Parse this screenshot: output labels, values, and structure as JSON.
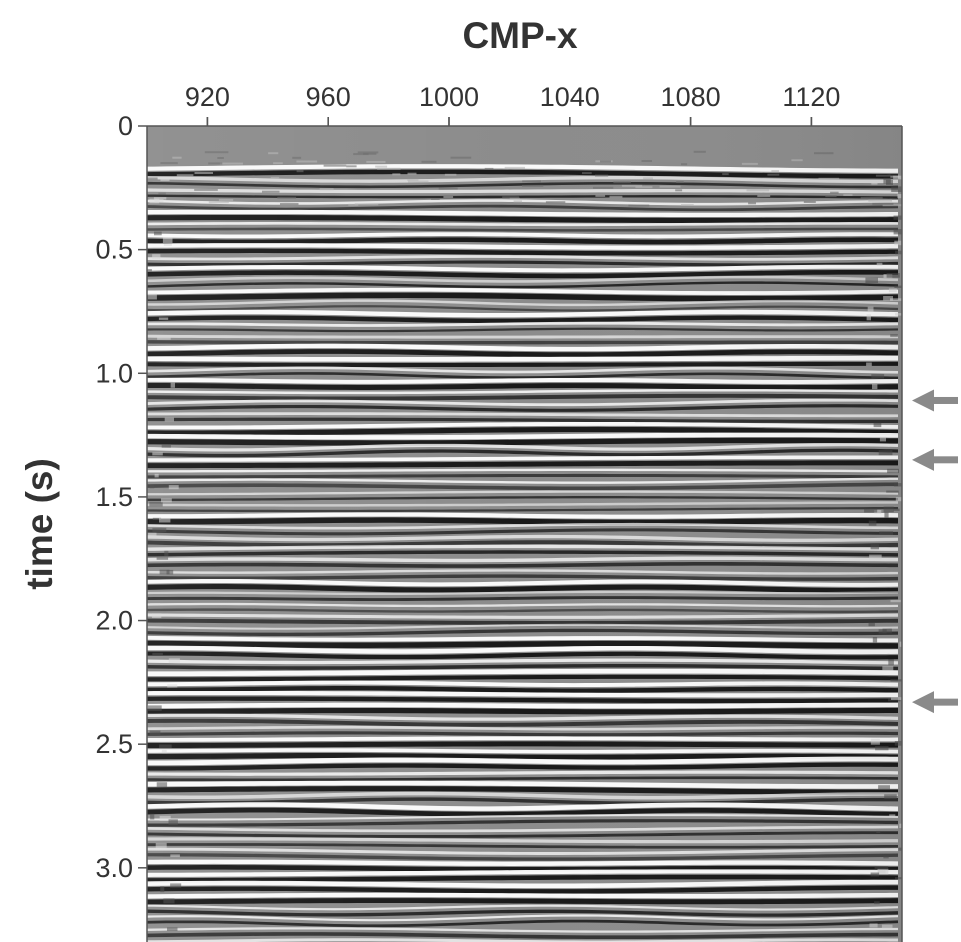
{
  "chart_data": {
    "type": "heatmap",
    "title": "",
    "xlabel": "CMP-x",
    "ylabel": "time (s)",
    "x_axis_position": "top",
    "xlim": [
      900,
      1150
    ],
    "ylim": [
      0,
      3.3
    ],
    "y_inverted": true,
    "x_ticks": [
      {
        "value": 920,
        "label": "920"
      },
      {
        "value": 960,
        "label": "960"
      },
      {
        "value": 1000,
        "label": "1000"
      },
      {
        "value": 1040,
        "label": "1040"
      },
      {
        "value": 1080,
        "label": "1080"
      },
      {
        "value": 1120,
        "label": "1120"
      }
    ],
    "y_ticks": [
      {
        "value": 0,
        "label": "0"
      },
      {
        "value": 0.5,
        "label": "0.5"
      },
      {
        "value": 1.0,
        "label": "1.0"
      },
      {
        "value": 1.5,
        "label": "1.5"
      },
      {
        "value": 2.0,
        "label": "2.0"
      },
      {
        "value": 2.5,
        "label": "2.5"
      },
      {
        "value": 3.0,
        "label": "3.0"
      }
    ],
    "colormap": "grayscale seismic amplitude",
    "colors": {
      "background": "#8c8c8c",
      "positive": "#ffffff",
      "negative": "#141414",
      "arrow": "#8a8a8a"
    },
    "data_start_time": 0.17,
    "annotations": [
      {
        "type": "arrow",
        "direction": "left",
        "time": 1.11
      },
      {
        "type": "arrow",
        "direction": "left",
        "time": 1.35
      },
      {
        "type": "arrow",
        "direction": "left",
        "time": 2.33
      }
    ]
  }
}
